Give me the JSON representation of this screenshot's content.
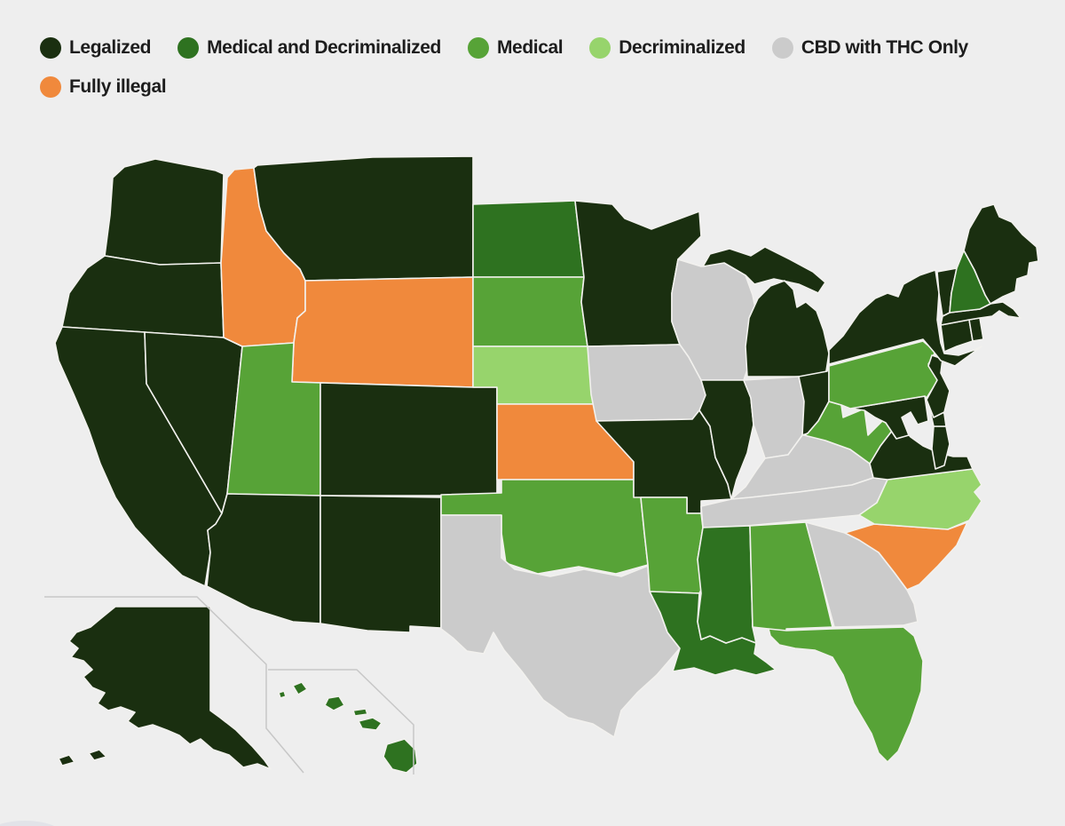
{
  "legend": {
    "items": [
      {
        "key": "legalized",
        "label": "Legalized",
        "color": "#1a2f10"
      },
      {
        "key": "medical_decriminalized",
        "label": "Medical and Decriminalized",
        "color": "#2e7220"
      },
      {
        "key": "medical",
        "label": "Medical",
        "color": "#57a337"
      },
      {
        "key": "decriminalized",
        "label": "Decriminalized",
        "color": "#97d46c"
      },
      {
        "key": "cbd_thc_only",
        "label": "CBD with THC Only",
        "color": "#cbcbcb"
      },
      {
        "key": "fully_illegal",
        "label": "Fully illegal",
        "color": "#f0893c"
      }
    ]
  },
  "map": {
    "background": "#eeeeee",
    "state_border_color": "#f2f1ee",
    "inset_line_color": "#c7c7c7",
    "states": [
      {
        "id": "WA",
        "name": "Washington",
        "status": "legalized"
      },
      {
        "id": "OR",
        "name": "Oregon",
        "status": "legalized"
      },
      {
        "id": "CA",
        "name": "California",
        "status": "legalized"
      },
      {
        "id": "NV",
        "name": "Nevada",
        "status": "legalized"
      },
      {
        "id": "ID",
        "name": "Idaho",
        "status": "fully_illegal"
      },
      {
        "id": "MT",
        "name": "Montana",
        "status": "legalized"
      },
      {
        "id": "WY",
        "name": "Wyoming",
        "status": "fully_illegal"
      },
      {
        "id": "UT",
        "name": "Utah",
        "status": "medical"
      },
      {
        "id": "CO",
        "name": "Colorado",
        "status": "legalized"
      },
      {
        "id": "AZ",
        "name": "Arizona",
        "status": "legalized"
      },
      {
        "id": "NM",
        "name": "New Mexico",
        "status": "legalized"
      },
      {
        "id": "ND",
        "name": "North Dakota",
        "status": "medical_decriminalized"
      },
      {
        "id": "SD",
        "name": "South Dakota",
        "status": "medical"
      },
      {
        "id": "NE",
        "name": "Nebraska",
        "status": "decriminalized"
      },
      {
        "id": "KS",
        "name": "Kansas",
        "status": "fully_illegal"
      },
      {
        "id": "OK",
        "name": "Oklahoma",
        "status": "medical"
      },
      {
        "id": "TX",
        "name": "Texas",
        "status": "cbd_thc_only"
      },
      {
        "id": "MN",
        "name": "Minnesota",
        "status": "legalized"
      },
      {
        "id": "IA",
        "name": "Iowa",
        "status": "cbd_thc_only"
      },
      {
        "id": "MO",
        "name": "Missouri",
        "status": "legalized"
      },
      {
        "id": "AR",
        "name": "Arkansas",
        "status": "medical"
      },
      {
        "id": "LA",
        "name": "Louisiana",
        "status": "medical_decriminalized"
      },
      {
        "id": "WI",
        "name": "Wisconsin",
        "status": "cbd_thc_only"
      },
      {
        "id": "IL",
        "name": "Illinois",
        "status": "legalized"
      },
      {
        "id": "MI",
        "name": "Michigan",
        "status": "legalized"
      },
      {
        "id": "IN",
        "name": "Indiana",
        "status": "cbd_thc_only"
      },
      {
        "id": "OH",
        "name": "Ohio",
        "status": "legalized"
      },
      {
        "id": "KY",
        "name": "Kentucky",
        "status": "cbd_thc_only"
      },
      {
        "id": "TN",
        "name": "Tennessee",
        "status": "cbd_thc_only"
      },
      {
        "id": "MS",
        "name": "Mississippi",
        "status": "medical_decriminalized"
      },
      {
        "id": "AL",
        "name": "Alabama",
        "status": "medical"
      },
      {
        "id": "GA",
        "name": "Georgia",
        "status": "cbd_thc_only"
      },
      {
        "id": "FL",
        "name": "Florida",
        "status": "medical"
      },
      {
        "id": "SC",
        "name": "South Carolina",
        "status": "fully_illegal"
      },
      {
        "id": "NC",
        "name": "North Carolina",
        "status": "decriminalized"
      },
      {
        "id": "VA",
        "name": "Virginia",
        "status": "legalized"
      },
      {
        "id": "WV",
        "name": "West Virginia",
        "status": "medical"
      },
      {
        "id": "MD",
        "name": "Maryland",
        "status": "legalized"
      },
      {
        "id": "DE",
        "name": "Delaware",
        "status": "legalized"
      },
      {
        "id": "PA",
        "name": "Pennsylvania",
        "status": "medical"
      },
      {
        "id": "NJ",
        "name": "New Jersey",
        "status": "legalized"
      },
      {
        "id": "NY",
        "name": "New York",
        "status": "legalized"
      },
      {
        "id": "CT",
        "name": "Connecticut",
        "status": "legalized"
      },
      {
        "id": "RI",
        "name": "Rhode Island",
        "status": "legalized"
      },
      {
        "id": "MA",
        "name": "Massachusetts",
        "status": "legalized"
      },
      {
        "id": "VT",
        "name": "Vermont",
        "status": "legalized"
      },
      {
        "id": "NH",
        "name": "New Hampshire",
        "status": "medical_decriminalized"
      },
      {
        "id": "ME",
        "name": "Maine",
        "status": "legalized"
      },
      {
        "id": "AK",
        "name": "Alaska",
        "status": "legalized"
      },
      {
        "id": "HI",
        "name": "Hawaii",
        "status": "medical_decriminalized"
      }
    ]
  }
}
